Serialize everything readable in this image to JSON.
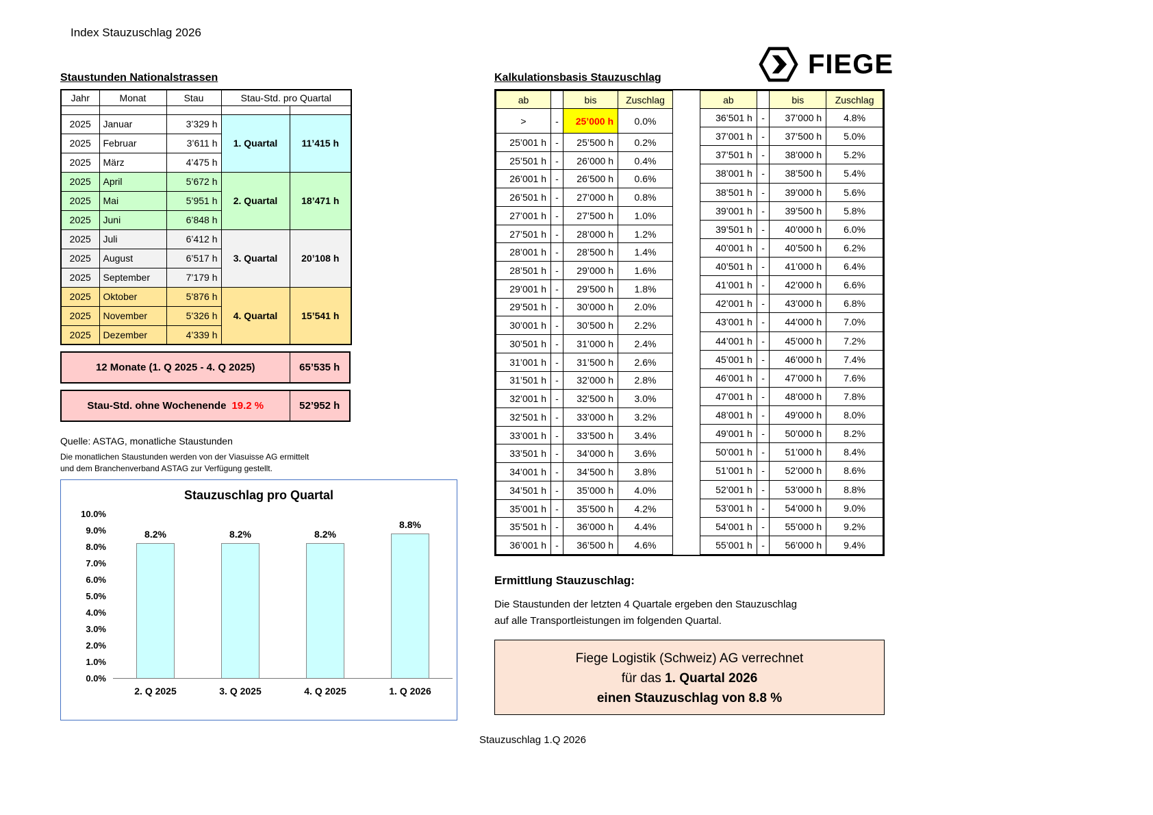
{
  "page": {
    "title": "Index Stauzuschlag 2026",
    "footer": "Stauzuschlag 1.Q 2026"
  },
  "logo": {
    "text": "FIEGE"
  },
  "staustunden": {
    "title": "Staustunden Nationalstrassen",
    "headers": {
      "jahr": "Jahr",
      "monat": "Monat",
      "stau": "Stau",
      "quartal": "Stau-Std. pro Quartal"
    },
    "quarters": [
      {
        "label": "1. Quartal",
        "total": "11’415 h",
        "month_color": "#ffffff",
        "block_color": "#ccffff",
        "months": [
          {
            "jahr": "2025",
            "monat": "Januar",
            "stau": "3’329 h"
          },
          {
            "jahr": "2025",
            "monat": "Februar",
            "stau": "3’611 h"
          },
          {
            "jahr": "2025",
            "monat": "März",
            "stau": "4’475 h"
          }
        ]
      },
      {
        "label": "2. Quartal",
        "total": "18’471 h",
        "month_color": "#ccffcc",
        "block_color": "#ccffcc",
        "months": [
          {
            "jahr": "2025",
            "monat": "April",
            "stau": "5’672 h"
          },
          {
            "jahr": "2025",
            "monat": "Mai",
            "stau": "5’951 h"
          },
          {
            "jahr": "2025",
            "monat": "Juni",
            "stau": "6’848 h"
          }
        ]
      },
      {
        "label": "3. Quartal",
        "total": "20’108 h",
        "month_color": "#f2f2f2",
        "block_color": "#f2f2f2",
        "months": [
          {
            "jahr": "2025",
            "monat": "Juli",
            "stau": "6’412 h"
          },
          {
            "jahr": "2025",
            "monat": "August",
            "stau": "6’517 h"
          },
          {
            "jahr": "2025",
            "monat": "September",
            "stau": "7’179 h"
          }
        ]
      },
      {
        "label": "4. Quartal",
        "total": "15’541 h",
        "month_color": "#ffe699",
        "block_color": "#ffe699",
        "months": [
          {
            "jahr": "2025",
            "monat": "Oktober",
            "stau": "5’876 h"
          },
          {
            "jahr": "2025",
            "monat": "November",
            "stau": "5’326 h"
          },
          {
            "jahr": "2025",
            "monat": "Dezember",
            "stau": "4’339 h"
          }
        ]
      }
    ],
    "total_row": {
      "label": "12 Monate  (1. Q 2025 - 4. Q 2025)",
      "value": "65’535 h"
    },
    "weekend_row": {
      "label": "Stau-Std. ohne Wochenende",
      "pct": "19.2 %",
      "value": "52’952 h"
    }
  },
  "source": {
    "line1": "Quelle: ASTAG, monatliche Staustunden",
    "line2": "Die monatlichen Staustunden werden von der Viasuisse AG ermittelt",
    "line3": "und dem Branchenverband ASTAG zur Verfügung gestellt."
  },
  "chart_data": {
    "type": "bar",
    "title": "Stauzuschlag pro Quartal",
    "categories": [
      "2. Q 2025",
      "3. Q 2025",
      "4. Q 2025",
      "1. Q 2026"
    ],
    "values": [
      8.2,
      8.2,
      8.2,
      8.8
    ],
    "bar_labels": [
      "8.2%",
      "8.2%",
      "8.2%",
      "8.8%"
    ],
    "ylim": [
      0,
      10
    ],
    "ytick_labels": [
      "10.0%",
      "9.0%",
      "8.0%",
      "7.0%",
      "6.0%",
      "5.0%",
      "4.0%",
      "3.0%",
      "2.0%",
      "1.0%",
      "0.0%"
    ],
    "grid": false,
    "legend": false,
    "bar_color": "#ccffff"
  },
  "kalkulation": {
    "title": "Kalkulationsbasis Stauzuschlag",
    "headers": {
      "ab": "ab",
      "bis": "bis",
      "zuschlag": "Zuschlag"
    },
    "dash": "-",
    "left_rows": [
      {
        "ab": ">",
        "bis": "25’000 h",
        "zuschlag": "0.0%",
        "highlight": true
      },
      {
        "ab": "25’001 h",
        "bis": "25’500 h",
        "zuschlag": "0.2%"
      },
      {
        "ab": "25’501 h",
        "bis": "26’000 h",
        "zuschlag": "0.4%"
      },
      {
        "ab": "26’001 h",
        "bis": "26’500 h",
        "zuschlag": "0.6%"
      },
      {
        "ab": "26’501 h",
        "bis": "27’000 h",
        "zuschlag": "0.8%"
      },
      {
        "ab": "27’001 h",
        "bis": "27’500 h",
        "zuschlag": "1.0%"
      },
      {
        "ab": "27’501 h",
        "bis": "28’000 h",
        "zuschlag": "1.2%"
      },
      {
        "ab": "28’001 h",
        "bis": "28’500 h",
        "zuschlag": "1.4%"
      },
      {
        "ab": "28’501 h",
        "bis": "29’000 h",
        "zuschlag": "1.6%"
      },
      {
        "ab": "29’001 h",
        "bis": "29’500 h",
        "zuschlag": "1.8%"
      },
      {
        "ab": "29’501 h",
        "bis": "30’000 h",
        "zuschlag": "2.0%"
      },
      {
        "ab": "30’001 h",
        "bis": "30’500 h",
        "zuschlag": "2.2%"
      },
      {
        "ab": "30’501 h",
        "bis": "31’000 h",
        "zuschlag": "2.4%"
      },
      {
        "ab": "31’001 h",
        "bis": "31’500 h",
        "zuschlag": "2.6%"
      },
      {
        "ab": "31’501 h",
        "bis": "32’000 h",
        "zuschlag": "2.8%"
      },
      {
        "ab": "32’001 h",
        "bis": "32’500 h",
        "zuschlag": "3.0%"
      },
      {
        "ab": "32’501 h",
        "bis": "33’000 h",
        "zuschlag": "3.2%"
      },
      {
        "ab": "33’001 h",
        "bis": "33’500 h",
        "zuschlag": "3.4%"
      },
      {
        "ab": "33’501 h",
        "bis": "34’000 h",
        "zuschlag": "3.6%"
      },
      {
        "ab": "34’001 h",
        "bis": "34’500 h",
        "zuschlag": "3.8%"
      },
      {
        "ab": "34’501 h",
        "bis": "35’000 h",
        "zuschlag": "4.0%"
      },
      {
        "ab": "35’001 h",
        "bis": "35’500 h",
        "zuschlag": "4.2%"
      },
      {
        "ab": "35’501 h",
        "bis": "36’000 h",
        "zuschlag": "4.4%"
      },
      {
        "ab": "36’001 h",
        "bis": "36’500 h",
        "zuschlag": "4.6%"
      }
    ],
    "right_rows": [
      {
        "ab": "36’501 h",
        "bis": "37’000 h",
        "zuschlag": "4.8%"
      },
      {
        "ab": "37’001 h",
        "bis": "37’500 h",
        "zuschlag": "5.0%"
      },
      {
        "ab": "37’501 h",
        "bis": "38’000 h",
        "zuschlag": "5.2%"
      },
      {
        "ab": "38’001 h",
        "bis": "38’500 h",
        "zuschlag": "5.4%"
      },
      {
        "ab": "38’501 h",
        "bis": "39’000 h",
        "zuschlag": "5.6%"
      },
      {
        "ab": "39’001 h",
        "bis": "39’500 h",
        "zuschlag": "5.8%"
      },
      {
        "ab": "39’501 h",
        "bis": "40’000 h",
        "zuschlag": "6.0%"
      },
      {
        "ab": "40’001 h",
        "bis": "40’500 h",
        "zuschlag": "6.2%"
      },
      {
        "ab": "40’501 h",
        "bis": "41’000 h",
        "zuschlag": "6.4%"
      },
      {
        "ab": "41’001 h",
        "bis": "42’000 h",
        "zuschlag": "6.6%"
      },
      {
        "ab": "42’001 h",
        "bis": "43’000 h",
        "zuschlag": "6.8%"
      },
      {
        "ab": "43’001 h",
        "bis": "44’000 h",
        "zuschlag": "7.0%"
      },
      {
        "ab": "44’001 h",
        "bis": "45’000 h",
        "zuschlag": "7.2%"
      },
      {
        "ab": "45’001 h",
        "bis": "46’000 h",
        "zuschlag": "7.4%"
      },
      {
        "ab": "46’001 h",
        "bis": "47’000 h",
        "zuschlag": "7.6%"
      },
      {
        "ab": "47’001 h",
        "bis": "48’000 h",
        "zuschlag": "7.8%"
      },
      {
        "ab": "48’001 h",
        "bis": "49’000 h",
        "zuschlag": "8.0%"
      },
      {
        "ab": "49’001 h",
        "bis": "50’000 h",
        "zuschlag": "8.2%"
      },
      {
        "ab": "50’001 h",
        "bis": "51’000 h",
        "zuschlag": "8.4%"
      },
      {
        "ab": "51’001 h",
        "bis": "52’000 h",
        "zuschlag": "8.6%"
      },
      {
        "ab": "52’001 h",
        "bis": "53’000 h",
        "zuschlag": "8.8%"
      },
      {
        "ab": "53’001 h",
        "bis": "54’000 h",
        "zuschlag": "9.0%"
      },
      {
        "ab": "54’001 h",
        "bis": "55’000 h",
        "zuschlag": "9.2%"
      },
      {
        "ab": "55’001 h",
        "bis": "56’000 h",
        "zuschlag": "9.4%"
      }
    ]
  },
  "ermittlung": {
    "title": "Ermittlung Stauzuschlag:",
    "text1": "Die Staustunden der letzten 4 Quartale ergeben den Stauzuschlag",
    "text2": "auf alle Transportleistungen im folgenden Quartal.",
    "box": {
      "line1": "Fiege Logistik (Schweiz) AG verrechnet",
      "line2_pre": "für das ",
      "line2_bold": "1. Quartal 2026",
      "line3": "einen Stauzuschlag von 8.8 %"
    }
  }
}
